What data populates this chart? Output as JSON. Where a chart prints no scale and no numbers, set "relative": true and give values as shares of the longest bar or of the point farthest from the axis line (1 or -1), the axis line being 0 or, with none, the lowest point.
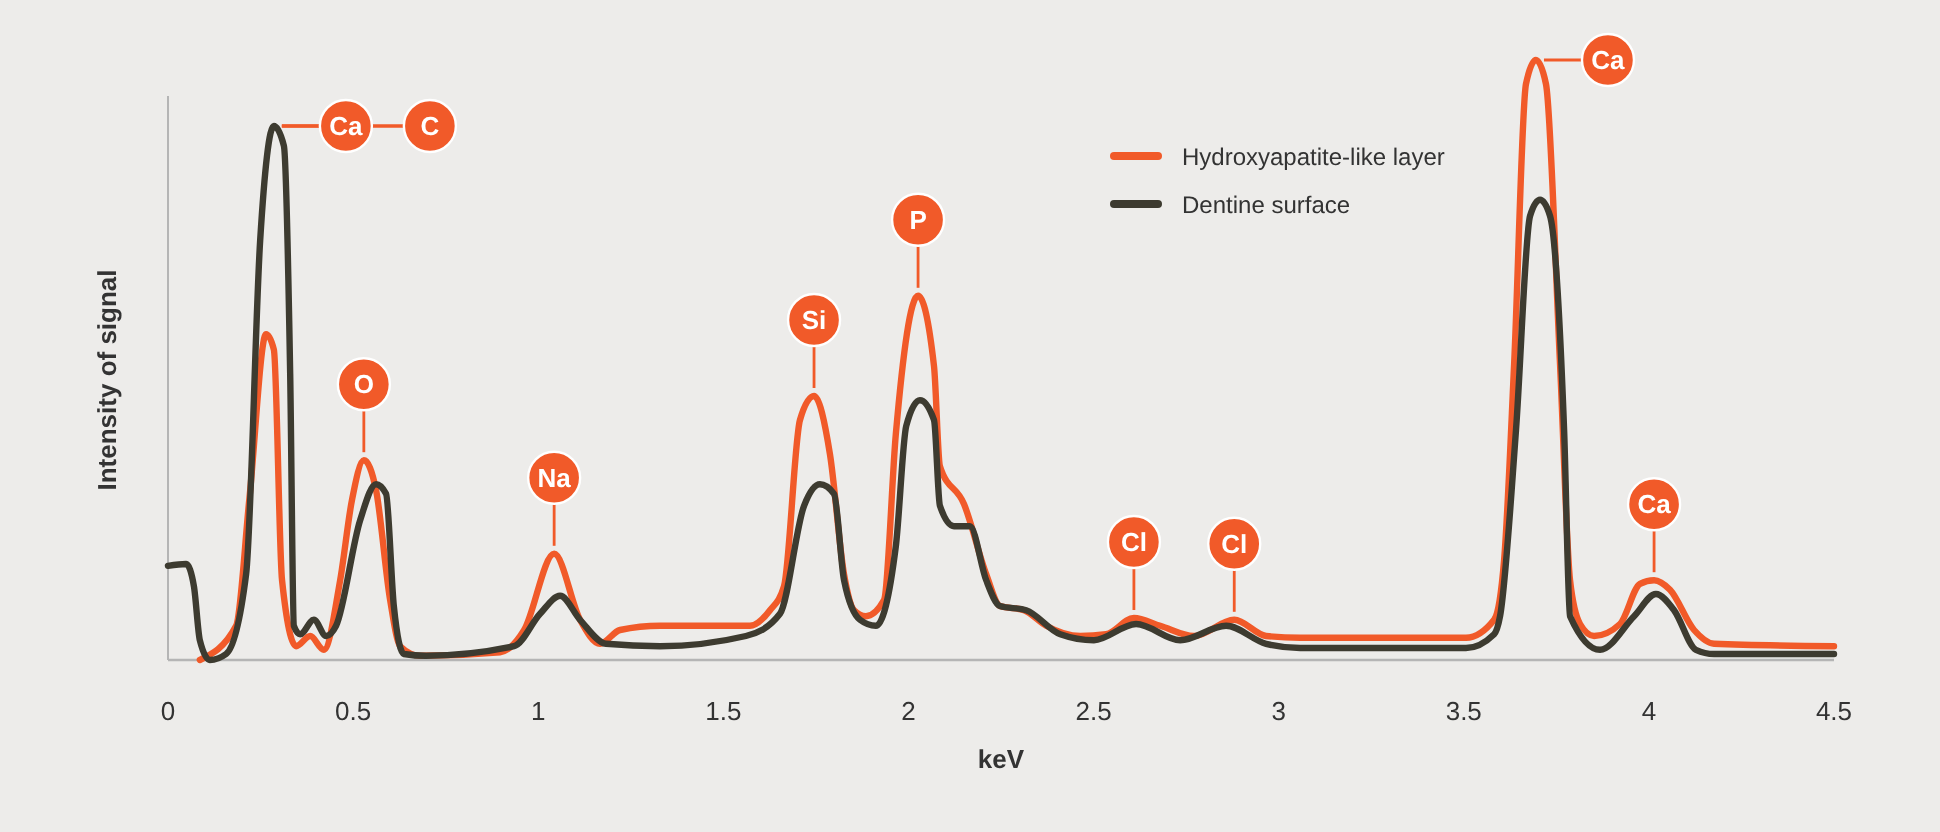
{
  "chart_data": {
    "type": "line",
    "relative": true,
    "xlabel": "keV",
    "ylabel": "Intensity of signal",
    "xlim": [
      0,
      4.5
    ],
    "xticks": [
      0,
      0.5,
      1,
      1.5,
      2,
      2.5,
      3,
      3.5,
      4,
      4.5
    ],
    "legend": "top right",
    "grid": false,
    "marker": "none",
    "line_style": "solid",
    "series": [
      {
        "name": "Hydroxyapatite-like layer",
        "color": "#f15a29",
        "x": [
          0.086,
          0.184,
          0.22,
          0.265,
          0.286,
          0.308,
          0.346,
          0.384,
          0.421,
          0.465,
          0.497,
          0.529,
          0.562,
          0.6,
          0.627,
          0.681,
          0.897,
          0.962,
          1.043,
          1.113,
          1.167,
          1.221,
          1.329,
          1.572,
          1.626,
          1.664,
          1.707,
          1.745,
          1.788,
          1.826,
          1.853,
          1.885,
          1.934,
          1.966,
          2.026,
          2.069,
          2.085,
          2.15,
          2.21,
          2.247,
          2.312,
          2.372,
          2.464,
          2.534,
          2.609,
          2.68,
          2.771,
          2.88,
          2.966,
          3.058,
          3.506,
          3.582,
          3.609,
          3.636,
          3.668,
          3.695,
          3.722,
          3.76,
          3.787,
          3.814,
          3.852,
          3.922,
          3.976,
          4.014,
          4.057,
          4.122,
          4.176,
          4.5
        ],
        "values": [
          0,
          0.057,
          0.27,
          0.543,
          0.517,
          0.133,
          0.023,
          0.04,
          0.017,
          0.133,
          0.267,
          0.333,
          0.283,
          0.1,
          0.023,
          0.007,
          0.013,
          0.05,
          0.177,
          0.067,
          0.027,
          0.05,
          0.057,
          0.057,
          0.083,
          0.123,
          0.4,
          0.44,
          0.343,
          0.143,
          0.083,
          0.073,
          0.1,
          0.377,
          0.607,
          0.49,
          0.323,
          0.26,
          0.143,
          0.09,
          0.083,
          0.057,
          0.04,
          0.043,
          0.07,
          0.057,
          0.04,
          0.067,
          0.04,
          0.037,
          0.037,
          0.067,
          0.167,
          0.493,
          0.96,
          1,
          0.96,
          0.493,
          0.133,
          0.06,
          0.04,
          0.06,
          0.127,
          0.133,
          0.117,
          0.05,
          0.027,
          0.023
        ]
      },
      {
        "name": "Dentine surface",
        "color": "#3d3b30",
        "x": [
          0,
          0.049,
          0.07,
          0.086,
          0.113,
          0.157,
          0.211,
          0.249,
          0.286,
          0.313,
          0.33,
          0.34,
          0.357,
          0.394,
          0.427,
          0.454,
          0.519,
          0.562,
          0.589,
          0.61,
          0.637,
          0.697,
          0.935,
          1.005,
          1.059,
          1.113,
          1.183,
          1.329,
          1.561,
          1.653,
          1.718,
          1.761,
          1.799,
          1.826,
          1.869,
          1.912,
          1.966,
          1.994,
          2.031,
          2.069,
          2.085,
          2.123,
          2.166,
          2.21,
          2.247,
          2.318,
          2.41,
          2.501,
          2.615,
          2.734,
          2.858,
          2.966,
          3.058,
          3.506,
          3.582,
          3.598,
          3.641,
          3.679,
          3.706,
          3.733,
          3.771,
          3.787,
          3.868,
          3.96,
          4.019,
          4.068,
          4.127,
          4.176,
          4.5
        ],
        "values": [
          0.157,
          0.16,
          0.123,
          0.033,
          0,
          0.01,
          0.143,
          0.7,
          0.89,
          0.857,
          0.477,
          0.057,
          0.043,
          0.067,
          0.04,
          0.057,
          0.233,
          0.293,
          0.277,
          0.09,
          0.01,
          0.007,
          0.023,
          0.077,
          0.107,
          0.067,
          0.027,
          0.023,
          0.04,
          0.077,
          0.257,
          0.293,
          0.277,
          0.133,
          0.067,
          0.057,
          0.19,
          0.39,
          0.433,
          0.4,
          0.257,
          0.223,
          0.223,
          0.133,
          0.09,
          0.083,
          0.043,
          0.033,
          0.06,
          0.033,
          0.057,
          0.027,
          0.02,
          0.02,
          0.043,
          0.073,
          0.383,
          0.74,
          0.767,
          0.74,
          0.383,
          0.073,
          0.017,
          0.073,
          0.11,
          0.083,
          0.017,
          0.01,
          0.01
        ]
      }
    ],
    "annotations": [
      {
        "text": "Ca",
        "x": 0.286,
        "y": 0.89
      },
      {
        "text": "C",
        "x": 0.286,
        "y": 0.89
      },
      {
        "text": "O",
        "x": 0.529,
        "y": 0.333
      },
      {
        "text": "Na",
        "x": 1.043,
        "y": 0.177
      },
      {
        "text": "Si",
        "x": 1.745,
        "y": 0.44
      },
      {
        "text": "P",
        "x": 2.026,
        "y": 0.607
      },
      {
        "text": "Cl",
        "x": 2.609,
        "y": 0.07
      },
      {
        "text": "Cl",
        "x": 2.88,
        "y": 0.067
      },
      {
        "text": "Ca",
        "x": 3.695,
        "y": 1
      },
      {
        "text": "Ca",
        "x": 4.014,
        "y": 0.133
      }
    ]
  }
}
